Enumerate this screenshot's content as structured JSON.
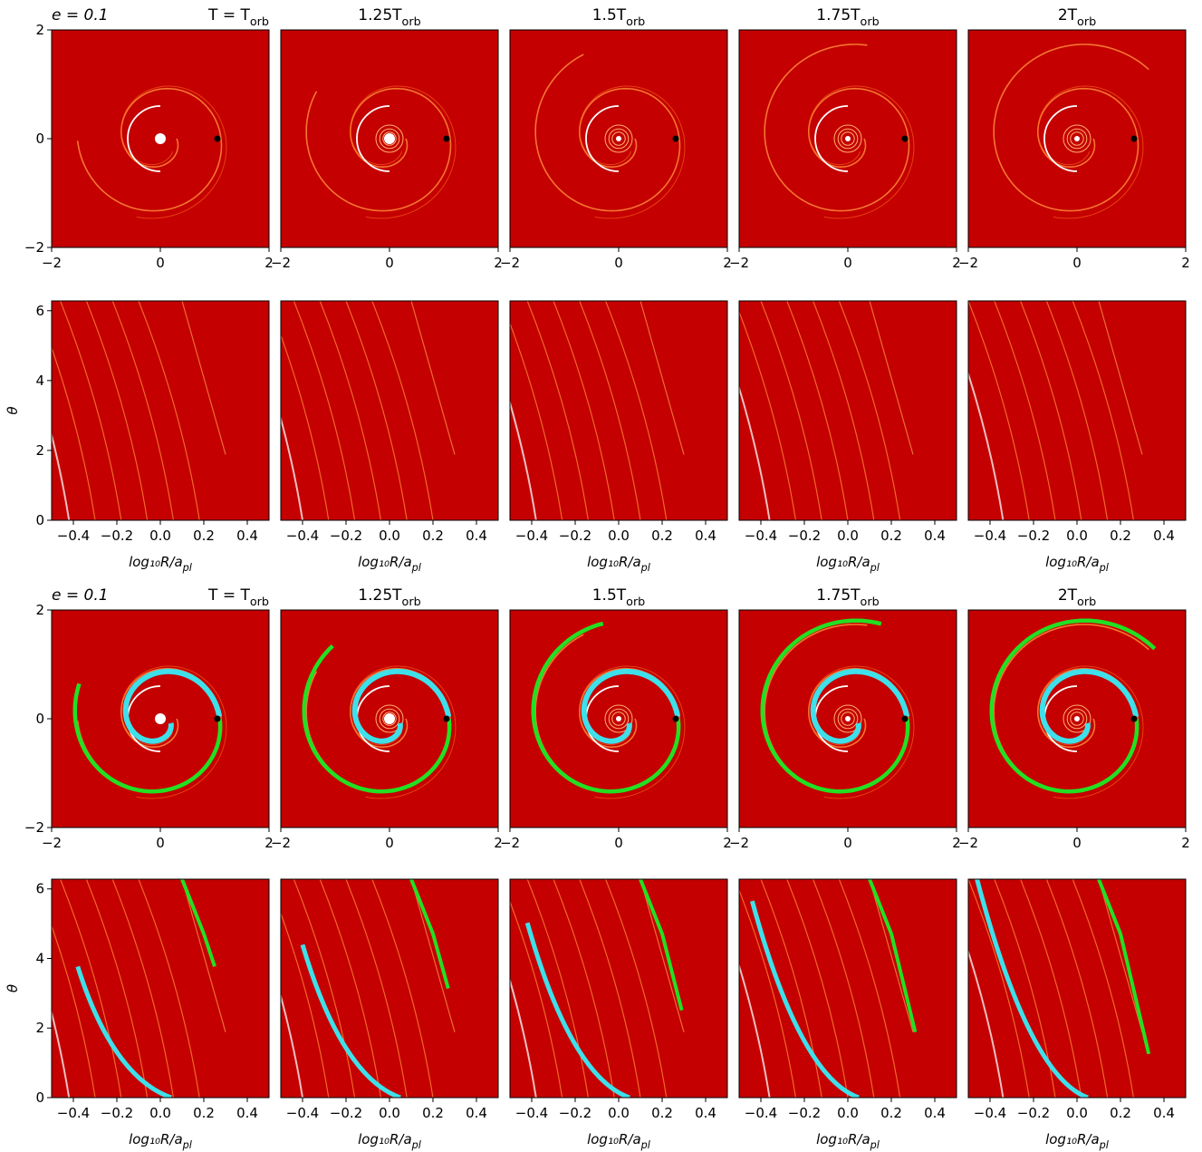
{
  "chart_data": [
    {
      "type": "image",
      "annotation": "e = 0.1",
      "title": "T = T_orb",
      "xlim": [
        -2,
        2
      ],
      "ylim": [
        -2,
        2
      ],
      "xticks": [
        {
          "value": -2,
          "label": "−2"
        },
        0,
        2
      ],
      "yticks": [
        {
          "value": -2,
          "label": "−2"
        },
        0,
        2
      ]
    },
    {
      "type": "image",
      "title": "1.25T_orb",
      "xlim": [
        -2,
        2
      ],
      "ylim": [
        -2,
        2
      ],
      "xticks": [
        {
          "value": -2,
          "label": "−2"
        },
        0,
        2
      ]
    },
    {
      "type": "image",
      "title": "1.5T_orb",
      "xlim": [
        -2,
        2
      ],
      "ylim": [
        -2,
        2
      ],
      "xticks": [
        {
          "value": -2,
          "label": "−2"
        },
        0,
        2
      ]
    },
    {
      "type": "image",
      "title": "1.75T_orb",
      "xlim": [
        -2,
        2
      ],
      "ylim": [
        -2,
        2
      ],
      "xticks": [
        {
          "value": -2,
          "label": "−2"
        },
        0,
        2
      ]
    },
    {
      "type": "image",
      "title": "2T_orb",
      "xlim": [
        -2,
        2
      ],
      "ylim": [
        -2,
        2
      ],
      "xticks": [
        {
          "value": -2,
          "label": "−2"
        },
        0,
        2
      ]
    },
    {
      "type": "image",
      "xlabel": "log₁₀R/a_pl",
      "ylabel": "θ",
      "xlim": [
        -0.5,
        0.5
      ],
      "ylim": [
        0,
        6.28
      ],
      "xticks": [
        {
          "value": -0.4,
          "label": "−0.4"
        },
        {
          "value": -0.2,
          "label": "−0.2"
        },
        {
          "value": 0,
          "label": "0.0"
        },
        0.2,
        0.4
      ],
      "yticks": [
        0,
        2,
        4,
        6
      ]
    },
    {
      "type": "image",
      "xlabel": "log₁₀R/a_pl",
      "xlim": [
        -0.5,
        0.5
      ],
      "ylim": [
        0,
        6.28
      ],
      "xticks": [
        {
          "value": -0.4,
          "label": "−0.4"
        },
        {
          "value": -0.2,
          "label": "−0.2"
        },
        {
          "value": 0,
          "label": "0.0"
        },
        0.2,
        0.4
      ]
    },
    {
      "type": "image",
      "xlabel": "log₁₀R/a_pl",
      "xlim": [
        -0.5,
        0.5
      ],
      "ylim": [
        0,
        6.28
      ],
      "xticks": [
        {
          "value": -0.4,
          "label": "−0.4"
        },
        {
          "value": -0.2,
          "label": "−0.2"
        },
        {
          "value": 0,
          "label": "0.0"
        },
        0.2,
        0.4
      ]
    },
    {
      "type": "image",
      "xlabel": "log₁₀R/a_pl",
      "xlim": [
        -0.5,
        0.5
      ],
      "ylim": [
        0,
        6.28
      ],
      "xticks": [
        {
          "value": -0.4,
          "label": "−0.4"
        },
        {
          "value": -0.2,
          "label": "−0.2"
        },
        {
          "value": 0,
          "label": "0.0"
        },
        0.2,
        0.4
      ]
    },
    {
      "type": "image",
      "xlabel": "log₁₀R/a_pl",
      "xlim": [
        -0.5,
        0.5
      ],
      "ylim": [
        0,
        6.28
      ],
      "xticks": [
        {
          "value": -0.4,
          "label": "−0.4"
        },
        {
          "value": -0.2,
          "label": "−0.2"
        },
        {
          "value": 0,
          "label": "0.0"
        },
        0.2,
        0.4
      ]
    },
    {
      "type": "image",
      "annotation": "e = 0.1",
      "title": "T = T_orb",
      "xlim": [
        -2,
        2
      ],
      "ylim": [
        -2,
        2
      ],
      "xticks": [
        {
          "value": -2,
          "label": "−2"
        },
        0,
        2
      ],
      "yticks": [
        {
          "value": -2,
          "label": "−2"
        },
        0,
        2
      ]
    },
    {
      "type": "image",
      "title": "1.25T_orb",
      "xlim": [
        -2,
        2
      ],
      "ylim": [
        -2,
        2
      ],
      "xticks": [
        {
          "value": -2,
          "label": "−2"
        },
        0,
        2
      ]
    },
    {
      "type": "image",
      "title": "1.5T_orb",
      "xlim": [
        -2,
        2
      ],
      "ylim": [
        -2,
        2
      ],
      "xticks": [
        {
          "value": -2,
          "label": "−2"
        },
        0,
        2
      ]
    },
    {
      "type": "image",
      "title": "1.75T_orb",
      "xlim": [
        -2,
        2
      ],
      "ylim": [
        -2,
        2
      ],
      "xticks": [
        {
          "value": -2,
          "label": "−2"
        },
        0,
        2
      ]
    },
    {
      "type": "image",
      "title": "2T_orb",
      "xlim": [
        -2,
        2
      ],
      "ylim": [
        -2,
        2
      ],
      "xticks": [
        {
          "value": -2,
          "label": "−2"
        },
        0,
        2
      ]
    },
    {
      "type": "image",
      "xlabel": "log₁₀R/a_pl",
      "ylabel": "θ",
      "xlim": [
        -0.5,
        0.5
      ],
      "ylim": [
        0,
        6.28
      ],
      "xticks": [
        {
          "value": -0.4,
          "label": "−0.4"
        },
        {
          "value": -0.2,
          "label": "−0.2"
        },
        {
          "value": 0,
          "label": "0.0"
        },
        0.2,
        0.4
      ],
      "yticks": [
        0,
        2,
        4,
        6
      ]
    },
    {
      "type": "image",
      "xlabel": "log₁₀R/a_pl",
      "xlim": [
        -0.5,
        0.5
      ],
      "ylim": [
        0,
        6.28
      ],
      "xticks": [
        {
          "value": -0.4,
          "label": "−0.4"
        },
        {
          "value": -0.2,
          "label": "−0.2"
        },
        {
          "value": 0,
          "label": "0.0"
        },
        0.2,
        0.4
      ]
    },
    {
      "type": "image",
      "xlabel": "log₁₀R/a_pl",
      "xlim": [
        -0.5,
        0.5
      ],
      "ylim": [
        0,
        6.28
      ],
      "xticks": [
        {
          "value": -0.4,
          "label": "−0.4"
        },
        {
          "value": -0.2,
          "label": "−0.2"
        },
        {
          "value": 0,
          "label": "0.0"
        },
        0.2,
        0.4
      ]
    },
    {
      "type": "image",
      "xlabel": "log₁₀R/a_pl",
      "xlim": [
        -0.5,
        0.5
      ],
      "ylim": [
        0,
        6.28
      ],
      "xticks": [
        {
          "value": -0.4,
          "label": "−0.4"
        },
        {
          "value": -0.2,
          "label": "−0.2"
        },
        {
          "value": 0,
          "label": "0.0"
        },
        0.2,
        0.4
      ]
    },
    {
      "type": "image",
      "xlabel": "log₁₀R/a_pl",
      "xlim": [
        -0.5,
        0.5
      ],
      "ylim": [
        0,
        6.28
      ],
      "xticks": [
        {
          "value": -0.4,
          "label": "−0.4"
        },
        {
          "value": -0.2,
          "label": "−0.2"
        },
        {
          "value": 0,
          "label": "0.0"
        },
        0.2,
        0.4
      ]
    }
  ]
}
